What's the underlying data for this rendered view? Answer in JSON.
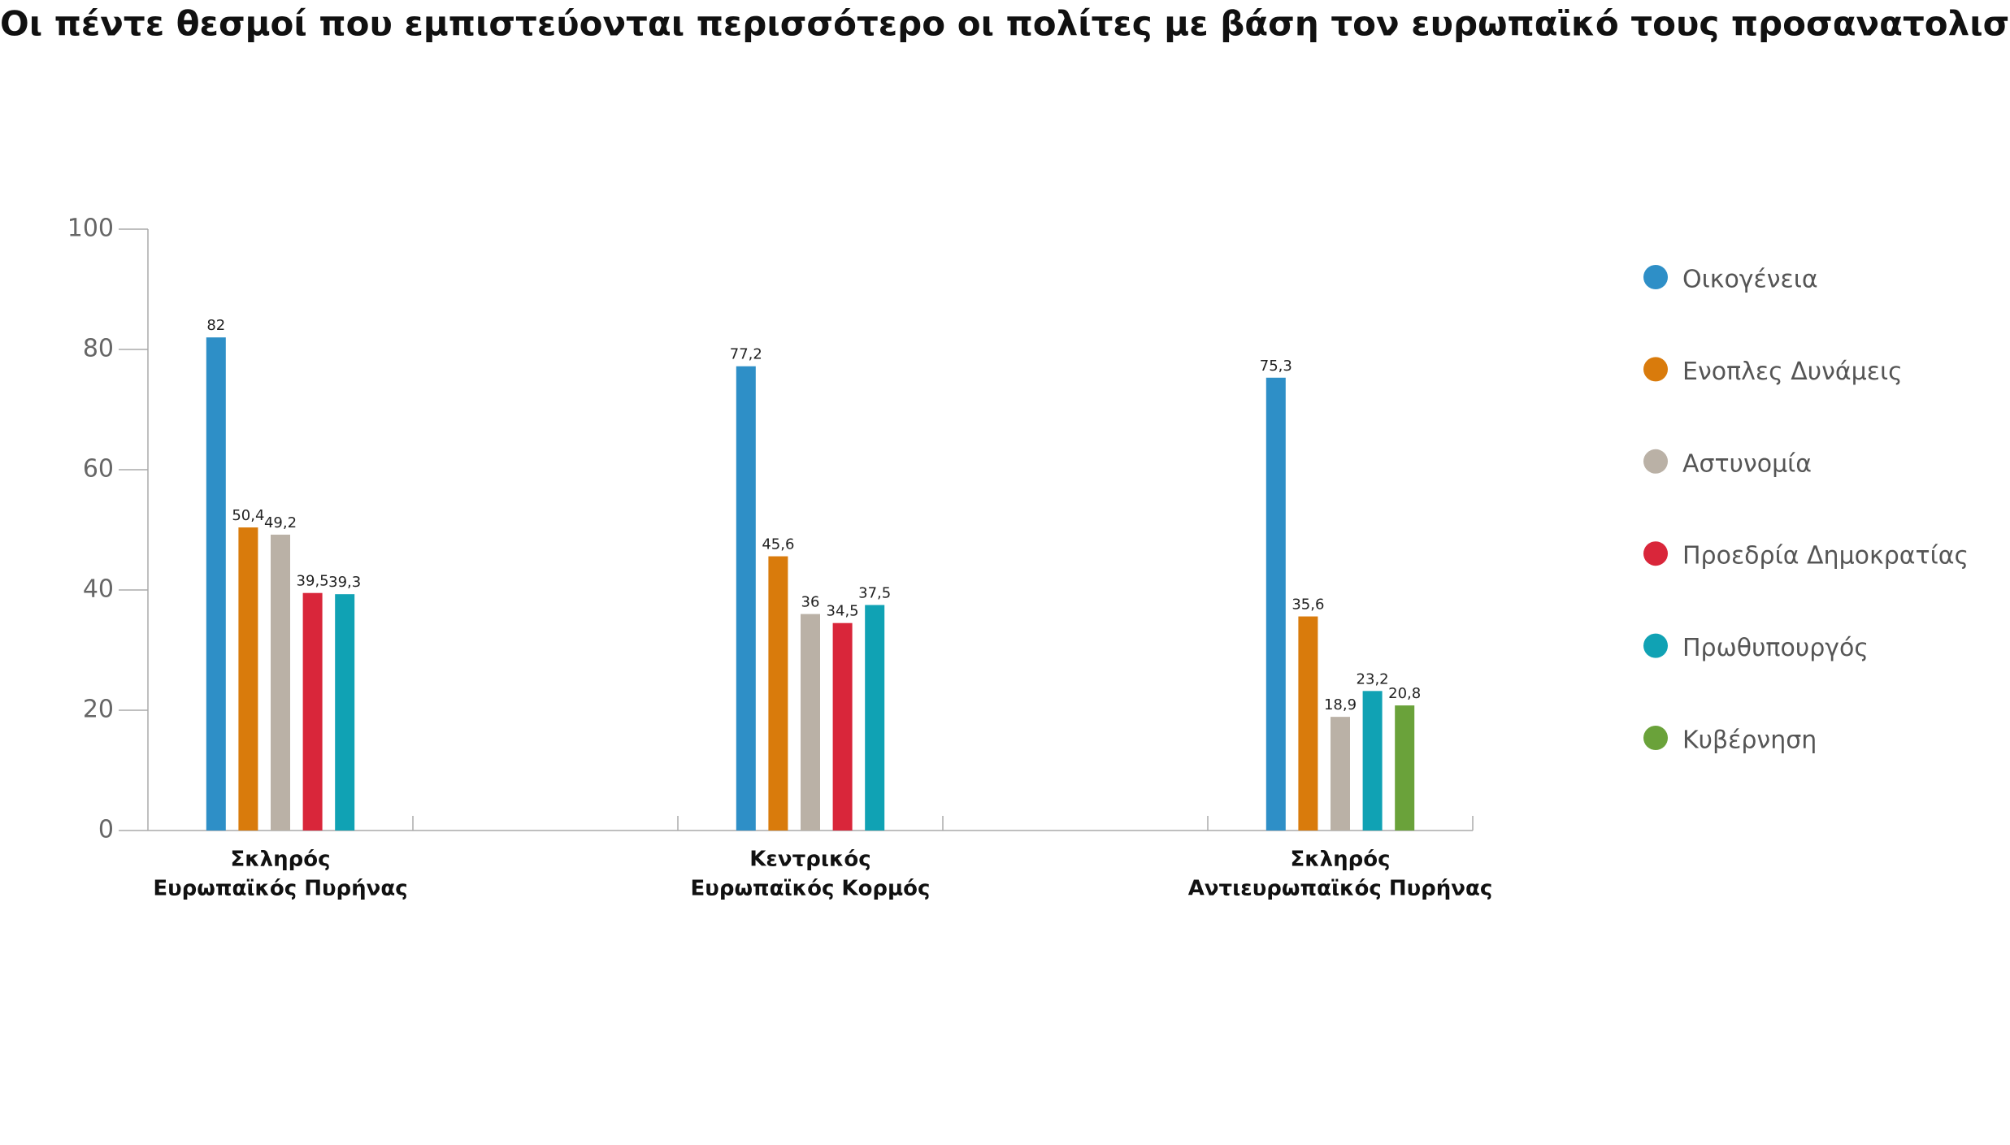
{
  "chart_data": {
    "type": "bar",
    "title": "Οι πέντε θεσμοί που εμπιστεύονται περισσότερο οι πολίτες με βάση τον ευρωπαϊκό τους προσανατολισμό",
    "categories": [
      [
        "Σκληρός",
        "Ευρωπαϊκός Πυρήνας"
      ],
      [
        "Κεντρικός",
        "Ευρωπαϊκός Κορμός"
      ],
      [
        "Σκληρός",
        "Αντιευρωπαϊκός Πυρήνας"
      ]
    ],
    "series": [
      {
        "name": "Οικογένεια",
        "color": "#2e8fc7",
        "values": [
          82,
          77.2,
          75.3
        ],
        "value_labels": [
          "82",
          "77,2",
          "75,3"
        ]
      },
      {
        "name": "Ενοπλες Δυνάμεις",
        "color": "#d97b0c",
        "values": [
          50.4,
          45.6,
          35.6
        ],
        "value_labels": [
          "50,4",
          "45,6",
          "35,6"
        ]
      },
      {
        "name": "Αστυνομία",
        "color": "#bab1a6",
        "values": [
          49.2,
          36,
          18.9
        ],
        "value_labels": [
          "49,2",
          "36",
          "18,9"
        ]
      },
      {
        "name": "Προεδρία Δημοκρατίας",
        "color": "#d9263a",
        "values": [
          39.5,
          34.5,
          null
        ],
        "value_labels": [
          "39,5",
          "34,5",
          null
        ]
      },
      {
        "name": "Πρωθυπουργός",
        "color": "#10a2b4",
        "values": [
          39.3,
          37.5,
          23.2
        ],
        "value_labels": [
          "39,3",
          "37,5",
          "23,2"
        ]
      },
      {
        "name": "Κυβέρνηση",
        "color": "#6aa23a",
        "values": [
          null,
          null,
          20.8
        ],
        "value_labels": [
          null,
          null,
          "20,8"
        ]
      }
    ],
    "ylim": [
      0,
      100
    ],
    "yticks": [
      0,
      20,
      40,
      60,
      80,
      100
    ],
    "grid": false,
    "legend": "right"
  }
}
